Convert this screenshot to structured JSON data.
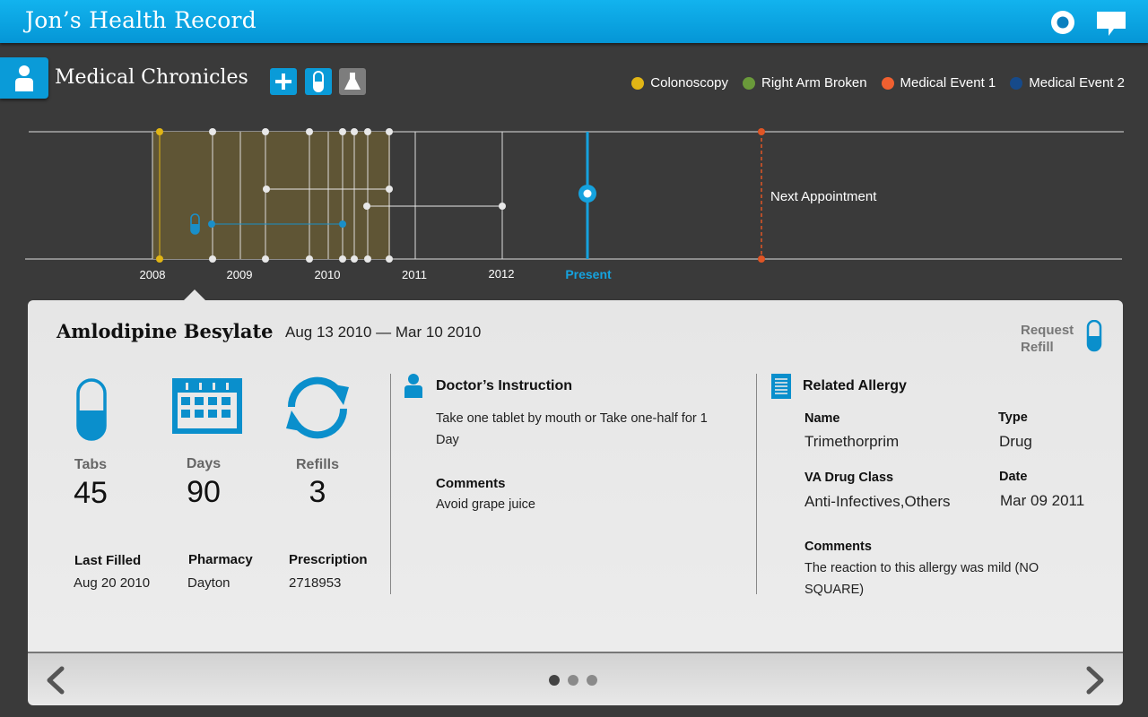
{
  "header": {
    "title": "Jon’s Health Record"
  },
  "section": {
    "title": "Medical Chronicles"
  },
  "legend": [
    {
      "label": "Colonoscopy",
      "color": "#e1b515"
    },
    {
      "label": "Right Arm Broken",
      "color": "#6a9a3a"
    },
    {
      "label": "Medical Event 1",
      "color": "#f06030"
    },
    {
      "label": "Medical Event 2",
      "color": "#164a8a"
    }
  ],
  "timeline": {
    "years": [
      "2008",
      "2009",
      "2010",
      "2011",
      "2012"
    ],
    "present_label": "Present",
    "next_label": "Next Appointment"
  },
  "detail": {
    "drug_name": "Amlodipine Besylate",
    "date_range": "Aug 13 2010 — Mar 10 2010",
    "request_refill": "Request Refill",
    "stats": [
      {
        "label": "Tabs",
        "value": "45"
      },
      {
        "label": "Days",
        "value": "90"
      },
      {
        "label": "Refills",
        "value": "3"
      }
    ],
    "info": [
      {
        "label": "Last Filled",
        "value": "Aug 20 2010"
      },
      {
        "label": "Pharmacy",
        "value": "Dayton"
      },
      {
        "label": "Prescription",
        "value": "2718953"
      }
    ],
    "instruction": {
      "title": "Doctor’s Instruction",
      "text": "Take one tablet by mouth or Take one-half for 1 Day",
      "comments_label": "Comments",
      "comments": "Avoid grape juice"
    },
    "allergy": {
      "title": "Related Allergy",
      "name_label": "Name",
      "name": "Trimethorprim",
      "type_label": "Type",
      "type": "Drug",
      "class_label": "VA Drug Class",
      "class": "Anti-Infectives,Others",
      "date_label": "Date",
      "date": "Mar 09 2011",
      "comments_label": "Comments",
      "comments": "The reaction to this allergy was mild (NO SQUARE)"
    }
  },
  "pager": {
    "count": 3,
    "active": 0
  }
}
